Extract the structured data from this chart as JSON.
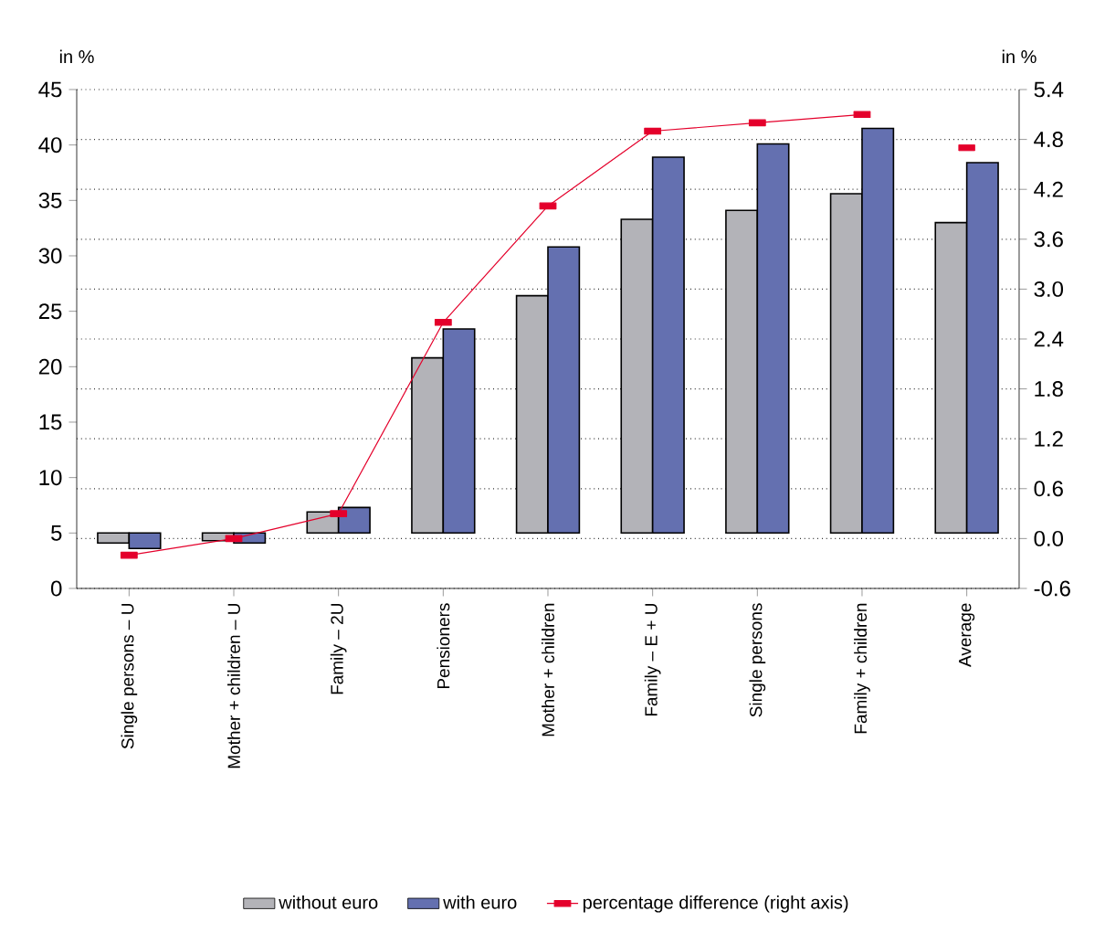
{
  "chart_data": {
    "type": "bar",
    "ylabel": "in %",
    "y2label": "in %",
    "categories": [
      "Single persons – U",
      "Mother + children – U",
      "Family – 2U",
      "Pensioners",
      "Mother + children",
      "Family – E + U",
      "Single persons",
      "Family + children",
      "Average"
    ],
    "series": [
      {
        "name": "without euro",
        "color": "#b3b3b8",
        "base": [
          5,
          5,
          5,
          5,
          5,
          5,
          5,
          5,
          5
        ],
        "values": [
          -0.9,
          -0.7,
          1.9,
          15.8,
          21.4,
          28.3,
          29.1,
          30.6,
          28.0
        ]
      },
      {
        "name": "with euro",
        "color": "#6470b0",
        "base": [
          5,
          5,
          5,
          5,
          5,
          5,
          5,
          5,
          5
        ],
        "values": [
          -1.4,
          -0.9,
          2.3,
          18.4,
          25.8,
          33.9,
          35.1,
          36.5,
          33.4
        ]
      },
      {
        "name": "percentage difference (right axis)",
        "type": "line",
        "axis": "y2",
        "color": "#e4002b",
        "values": [
          -0.2,
          0.0,
          0.3,
          2.6,
          4.0,
          4.9,
          5.0,
          5.1,
          null
        ]
      },
      {
        "type": "scatter",
        "axis": "y2",
        "color": "#e4002b",
        "values": [
          null,
          null,
          null,
          null,
          null,
          null,
          null,
          null,
          4.7
        ]
      }
    ],
    "ylim": [
      0,
      45
    ],
    "yticks": [
      0,
      5,
      10,
      15,
      20,
      25,
      30,
      35,
      40,
      45
    ],
    "y2lim": [
      -0.6,
      5.4
    ],
    "y2ticks": [
      -0.6,
      {
        "value": 0,
        "label": "0.0"
      },
      0.6,
      1.2,
      1.8,
      2.4,
      {
        "value": 3,
        "label": "3.0"
      },
      3.6,
      4.2,
      4.8,
      5.4
    ],
    "grid": "y",
    "marker": "square",
    "legend": "bottom"
  }
}
